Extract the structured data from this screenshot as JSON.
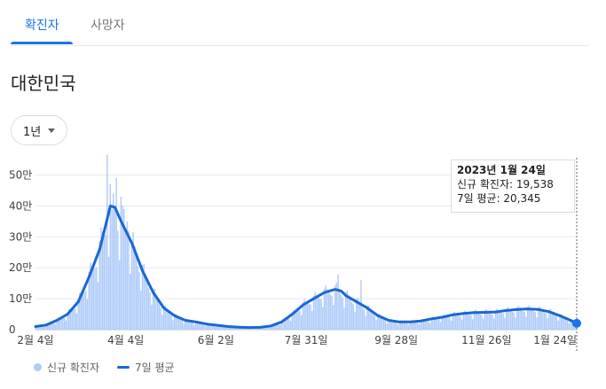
{
  "tabs": [
    {
      "label": "확진자",
      "active": true
    },
    {
      "label": "사망자",
      "active": false
    }
  ],
  "region": "대한민국",
  "range_button": {
    "label": "1년"
  },
  "tooltip": {
    "date": "2023년 1월 24일",
    "cases_line": "신규 확진자: 19,538",
    "avg_line": "7일 평균: 20,345"
  },
  "legend": {
    "bars": "신규 확진자",
    "line": "7일 평균"
  },
  "colors": {
    "bars": "#aecbfa",
    "line": "#1967d2",
    "accent": "#1a73e8"
  },
  "chart_data": {
    "type": "bar",
    "unit": "만",
    "ylim": [
      0,
      550000
    ],
    "yticks": [
      0,
      100000,
      200000,
      300000,
      400000,
      500000
    ],
    "ytick_labels": [
      "0",
      "10만",
      "20만",
      "30만",
      "40만",
      "50만"
    ],
    "xticks": [
      "2월 4일",
      "4월 4일",
      "6월 2일",
      "7월 31일",
      "9월 28일",
      "11월 26일",
      "1월 24일"
    ],
    "grid": true,
    "series": [
      {
        "name": "7일 평균",
        "kind": "line",
        "points": [
          [
            0,
            10000
          ],
          [
            7,
            15000
          ],
          [
            14,
            30000
          ],
          [
            21,
            50000
          ],
          [
            28,
            90000
          ],
          [
            35,
            170000
          ],
          [
            42,
            260000
          ],
          [
            46,
            340000
          ],
          [
            49,
            400000
          ],
          [
            52,
            395000
          ],
          [
            56,
            350000
          ],
          [
            63,
            280000
          ],
          [
            70,
            190000
          ],
          [
            77,
            120000
          ],
          [
            84,
            70000
          ],
          [
            91,
            45000
          ],
          [
            98,
            30000
          ],
          [
            105,
            25000
          ],
          [
            112,
            18000
          ],
          [
            119,
            14000
          ],
          [
            126,
            10000
          ],
          [
            133,
            8000
          ],
          [
            140,
            7000
          ],
          [
            147,
            7500
          ],
          [
            154,
            12000
          ],
          [
            161,
            25000
          ],
          [
            168,
            50000
          ],
          [
            175,
            80000
          ],
          [
            182,
            100000
          ],
          [
            189,
            120000
          ],
          [
            196,
            130000
          ],
          [
            200,
            125000
          ],
          [
            203,
            110000
          ],
          [
            210,
            90000
          ],
          [
            217,
            70000
          ],
          [
            224,
            45000
          ],
          [
            231,
            30000
          ],
          [
            238,
            25000
          ],
          [
            245,
            25000
          ],
          [
            252,
            28000
          ],
          [
            259,
            35000
          ],
          [
            266,
            40000
          ],
          [
            273,
            48000
          ],
          [
            280,
            52000
          ],
          [
            287,
            55000
          ],
          [
            294,
            56000
          ],
          [
            301,
            57000
          ],
          [
            308,
            62000
          ],
          [
            315,
            65000
          ],
          [
            322,
            67000
          ],
          [
            329,
            65000
          ],
          [
            336,
            58000
          ],
          [
            343,
            45000
          ],
          [
            350,
            30000
          ],
          [
            354,
            20345
          ]
        ]
      },
      {
        "name": "신규 확진자",
        "kind": "bar",
        "spikes": [
          [
            47,
            565000
          ],
          [
            49,
            470000
          ],
          [
            50,
            390000
          ],
          [
            51,
            440000
          ],
          [
            53,
            490000
          ],
          [
            56,
            430000
          ],
          [
            58,
            390000
          ],
          [
            60,
            350000
          ],
          [
            61,
            320000
          ],
          [
            63,
            280000
          ],
          [
            198,
            178000
          ],
          [
            213,
            160000
          ]
        ],
        "last_value": 19538
      }
    ]
  }
}
